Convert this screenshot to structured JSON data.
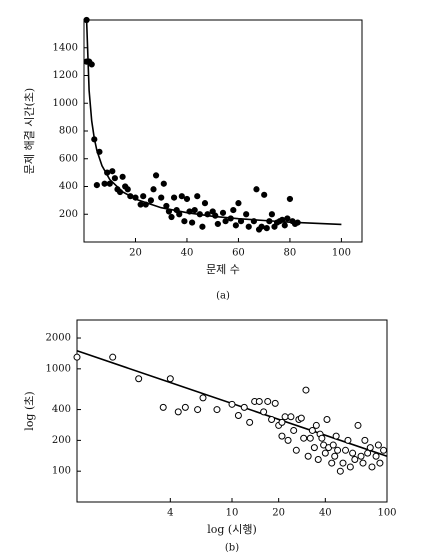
{
  "chart_data": [
    {
      "type": "scatter",
      "y_label": "문제 해결 시간(초)",
      "x_label": "문제 수",
      "caption": "(a)",
      "xlim": [
        0,
        108
      ],
      "ylim": [
        0,
        1600
      ],
      "xticks": [
        20,
        40,
        60,
        80,
        100
      ],
      "yticks": [
        200,
        400,
        600,
        800,
        1000,
        1200,
        1400
      ],
      "color": "#000000",
      "marker": "filled",
      "points": {
        "x": [
          1,
          1,
          2,
          3,
          4,
          6,
          5,
          8,
          9,
          10,
          11,
          12,
          13,
          14,
          15,
          16,
          17,
          18,
          20,
          22,
          23,
          24,
          26,
          27,
          28,
          30,
          31,
          32,
          33,
          34,
          35,
          36,
          37,
          38,
          39,
          40,
          41,
          42,
          43,
          44,
          45,
          46,
          47,
          48,
          50,
          51,
          52,
          54,
          55,
          57,
          58,
          59,
          60,
          61,
          63,
          64,
          66,
          67,
          68,
          69,
          70,
          71,
          72,
          73,
          74,
          75,
          76,
          77,
          78,
          79,
          80,
          81,
          82,
          83
        ],
        "values": [
          1600,
          1300,
          1300,
          1280,
          740,
          650,
          410,
          420,
          500,
          420,
          510,
          460,
          380,
          360,
          470,
          400,
          380,
          330,
          320,
          270,
          330,
          270,
          300,
          380,
          480,
          320,
          420,
          260,
          220,
          180,
          320,
          230,
          200,
          330,
          150,
          310,
          220,
          140,
          230,
          330,
          200,
          110,
          280,
          200,
          220,
          190,
          130,
          210,
          150,
          170,
          230,
          120,
          280,
          150,
          200,
          110,
          150,
          380,
          90,
          110,
          340,
          100,
          150,
          200,
          110,
          140,
          150,
          160,
          120,
          170,
          310,
          150,
          130,
          140
        ]
      },
      "curve": {
        "x": [
          1,
          2,
          3,
          4,
          5,
          7,
          10,
          15,
          20,
          30,
          40,
          50,
          60,
          70,
          80,
          90,
          100
        ],
        "values": [
          1600,
          1093,
          873,
          747,
          659,
          549,
          451,
          362,
          309,
          247,
          211,
          185,
          168,
          155,
          143,
          135,
          127
        ]
      }
    },
    {
      "type": "scatter",
      "y_label": "log (초)",
      "x_label": "log (시행)",
      "caption": "(b)",
      "xscale": "log",
      "yscale": "log",
      "xlim": [
        1,
        100
      ],
      "ylim": [
        50,
        3000
      ],
      "xticks": [
        4,
        10,
        20,
        40,
        100
      ],
      "yticks": [
        100,
        200,
        400,
        1000,
        2000
      ],
      "color": "#000000",
      "marker": "open",
      "points": {
        "x": [
          1,
          1.7,
          2.5,
          3.6,
          4,
          4.5,
          5,
          6,
          6.5,
          8,
          10,
          11,
          12,
          13,
          14,
          15,
          16,
          17,
          18,
          19,
          20,
          21,
          21,
          22,
          23,
          24,
          25,
          26,
          27,
          28,
          29,
          30,
          31,
          32,
          33,
          34,
          35,
          36,
          37,
          38,
          39,
          40,
          41,
          42,
          44,
          45,
          46,
          47,
          48,
          50,
          52,
          54,
          56,
          58,
          60,
          62,
          65,
          68,
          70,
          72,
          75,
          78,
          80,
          85,
          88,
          90,
          95
        ],
        "values": [
          1300,
          1300,
          800,
          420,
          800,
          380,
          420,
          400,
          520,
          400,
          450,
          350,
          420,
          300,
          480,
          480,
          380,
          480,
          320,
          460,
          280,
          220,
          300,
          340,
          200,
          340,
          250,
          160,
          320,
          330,
          210,
          620,
          140,
          210,
          250,
          170,
          280,
          130,
          230,
          210,
          180,
          150,
          320,
          170,
          120,
          180,
          140,
          220,
          160,
          100,
          120,
          160,
          200,
          110,
          150,
          130,
          280,
          140,
          120,
          200,
          150,
          170,
          110,
          140,
          180,
          120,
          160
        ]
      },
      "curve": {
        "x": [
          1,
          100
        ],
        "values": [
          1500,
          140
        ]
      }
    }
  ]
}
